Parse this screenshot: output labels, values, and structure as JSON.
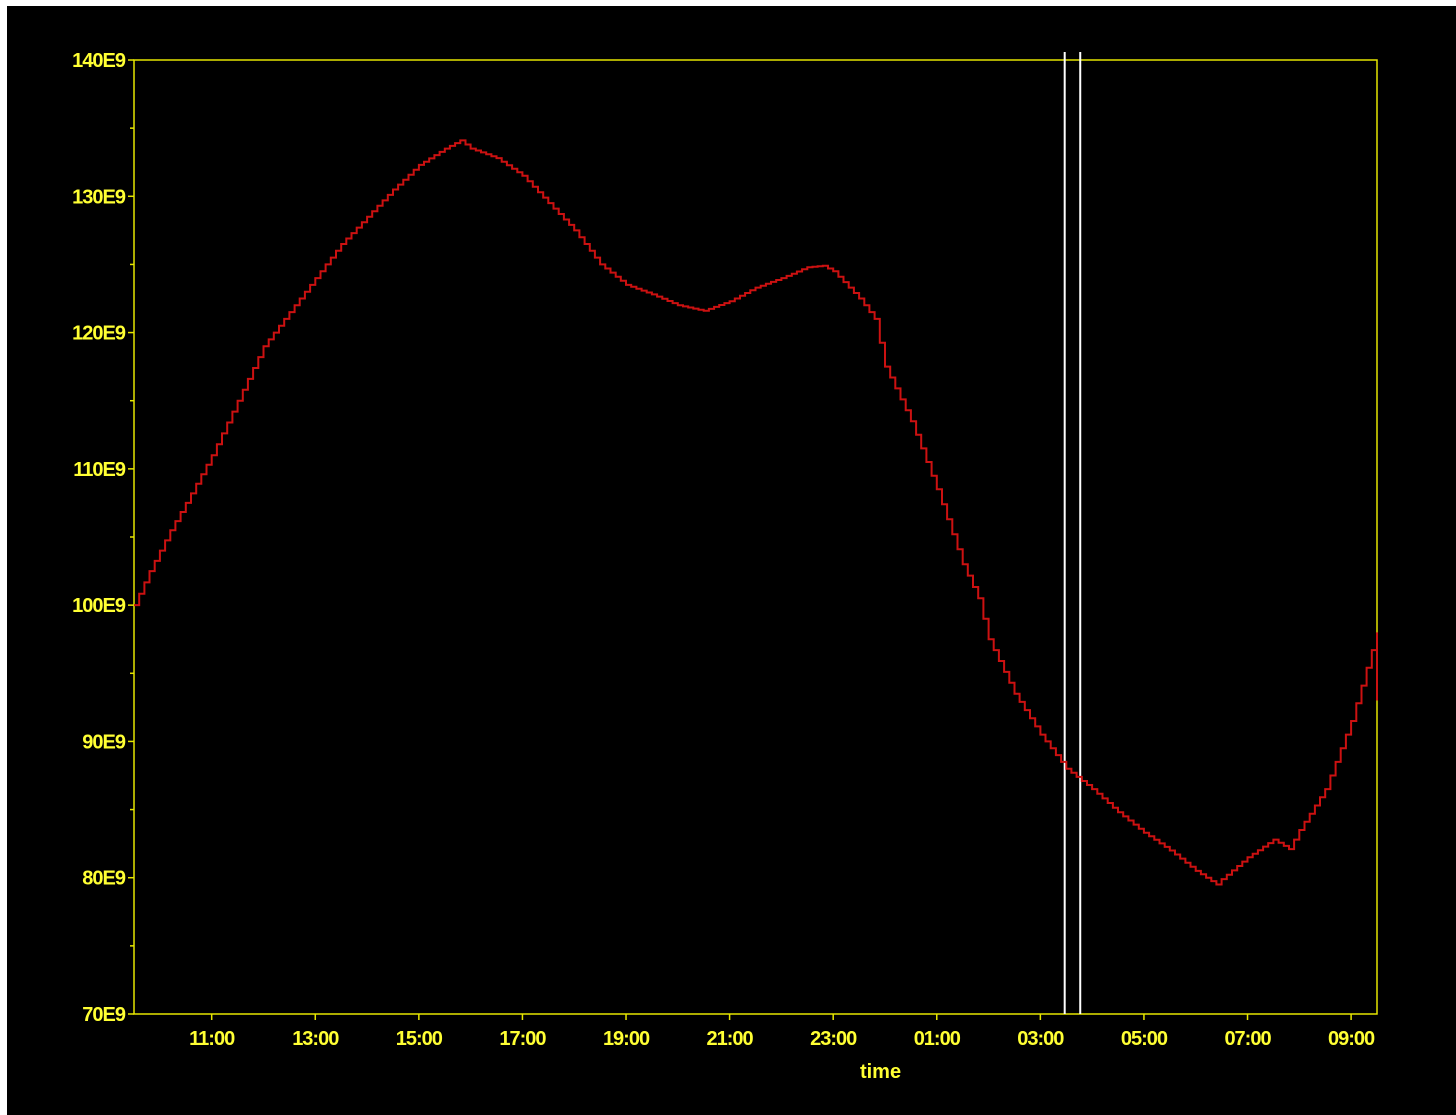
{
  "chart_data": {
    "type": "line",
    "title": "",
    "xlabel": "time",
    "ylabel": "",
    "x_unit": "hours since 09:30",
    "xlim": [
      0,
      24
    ],
    "ylim": [
      70000000000.0,
      140000000000.0
    ],
    "x_ticks": [
      {
        "x": 1.5,
        "label": "11:00"
      },
      {
        "x": 3.5,
        "label": "13:00"
      },
      {
        "x": 5.5,
        "label": "15:00"
      },
      {
        "x": 7.5,
        "label": "17:00"
      },
      {
        "x": 9.5,
        "label": "19:00"
      },
      {
        "x": 11.5,
        "label": "21:00"
      },
      {
        "x": 13.5,
        "label": "23:00"
      },
      {
        "x": 15.5,
        "label": "01:00"
      },
      {
        "x": 17.5,
        "label": "03:00"
      },
      {
        "x": 19.5,
        "label": "05:00"
      },
      {
        "x": 21.5,
        "label": "07:00"
      },
      {
        "x": 23.5,
        "label": "09:00"
      }
    ],
    "y_ticks": [
      {
        "y": 70000000000.0,
        "label": "70E9"
      },
      {
        "y": 80000000000.0,
        "label": "80E9"
      },
      {
        "y": 90000000000.0,
        "label": "90E9"
      },
      {
        "y": 100000000000.0,
        "label": "100E9"
      },
      {
        "y": 110000000000.0,
        "label": "110E9"
      },
      {
        "y": 120000000000.0,
        "label": "120E9"
      },
      {
        "y": 130000000000.0,
        "label": "130E9"
      },
      {
        "y": 140000000000.0,
        "label": "140E9"
      }
    ],
    "y_minor_ticks": [
      75000000000.0,
      85000000000.0,
      95000000000.0,
      105000000000.0,
      115000000000.0,
      125000000000.0,
      135000000000.0
    ],
    "grid": false,
    "legend": "none",
    "markers_x": [
      17.97,
      18.27
    ],
    "series": [
      {
        "name": "",
        "color": "#cc1111",
        "x": [
          0,
          0.3,
          0.7,
          1.0,
          1.5,
          2.0,
          2.5,
          3.0,
          3.5,
          4.0,
          4.5,
          5.0,
          5.5,
          6.0,
          6.3,
          6.5,
          7.0,
          7.5,
          8.0,
          8.5,
          9.0,
          9.5,
          10.0,
          10.5,
          11.0,
          11.5,
          12.0,
          12.5,
          13.0,
          13.3,
          13.5,
          14.0,
          14.3,
          14.5,
          15.0,
          15.5,
          16.0,
          16.3,
          16.5,
          17.0,
          17.5,
          18.0,
          18.5,
          19.0,
          19.5,
          20.0,
          20.5,
          20.9,
          21.0,
          21.5,
          22.0,
          22.3,
          22.5,
          23.0,
          23.5,
          24.0,
          24.0
        ],
        "y": [
          100000000000.0,
          102500000000.0,
          105500000000.0,
          107500000000.0,
          111000000000.0,
          115000000000.0,
          119000000000.0,
          121500000000.0,
          124000000000.0,
          126500000000.0,
          128500000000.0,
          130500000000.0,
          132300000000.0,
          133500000000.0,
          134100000000.0,
          133500000000.0,
          132800000000.0,
          131500000000.0,
          129500000000.0,
          127500000000.0,
          125000000000.0,
          123500000000.0,
          122800000000.0,
          122000000000.0,
          121600000000.0,
          122300000000.0,
          123300000000.0,
          124000000000.0,
          124800000000.0,
          124900000000.0,
          124500000000.0,
          122500000000.0,
          121000000000.0,
          117500000000.0,
          113500000000.0,
          108500000000.0,
          103000000000.0,
          100500000000.0,
          97500000000.0,
          93500000000.0,
          90500000000.0,
          88000000000.0,
          86500000000.0,
          84800000000.0,
          83300000000.0,
          82000000000.0,
          80500000000.0,
          79500000000.0,
          79900000000.0,
          81500000000.0,
          82800000000.0,
          82100000000.0,
          83500000000.0,
          86500000000.0,
          91500000000.0,
          98000000000.0,
          93000000000.0
        ]
      }
    ]
  }
}
